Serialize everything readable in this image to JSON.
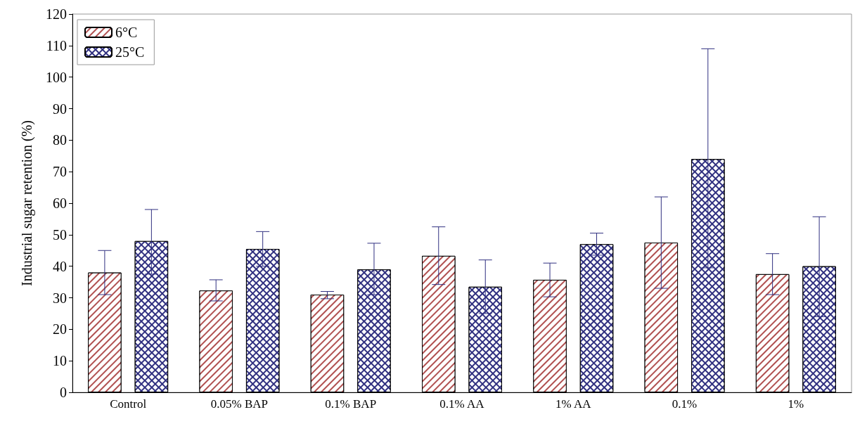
{
  "chart_data": {
    "type": "bar",
    "ylabel": "Industrial sugar retention (%)",
    "categories": [
      "Control",
      "0.05% BAP",
      "0.1% BAP",
      "0.1% AA",
      "1% AA",
      "0.1%",
      "1%"
    ],
    "series": [
      {
        "name": "6°C",
        "color": "#b05050",
        "values": [
          38,
          32.3,
          31,
          43.3,
          35.7,
          47.5,
          37.5
        ],
        "errors": [
          [
            31,
            45
          ],
          [
            29,
            35.7
          ],
          [
            29.7,
            32
          ],
          [
            34.2,
            52.5
          ],
          [
            30.3,
            41
          ],
          [
            33,
            62
          ],
          [
            31,
            44
          ]
        ]
      },
      {
        "name": "25°C",
        "color": "#303080",
        "values": [
          48,
          45.5,
          39,
          33.5,
          47,
          74,
          40
        ],
        "errors": [
          [
            37.5,
            58
          ],
          [
            40,
            51
          ],
          [
            31,
            47.3
          ],
          [
            25,
            42
          ],
          [
            43.5,
            50.5
          ],
          [
            39.5,
            109
          ],
          [
            24,
            55.7
          ]
        ]
      }
    ],
    "ylim": [
      0,
      120
    ],
    "yticks": [
      0,
      10,
      20,
      30,
      40,
      50,
      60,
      70,
      80,
      90,
      100,
      110,
      120
    ],
    "grid": false,
    "legend": "top left"
  }
}
